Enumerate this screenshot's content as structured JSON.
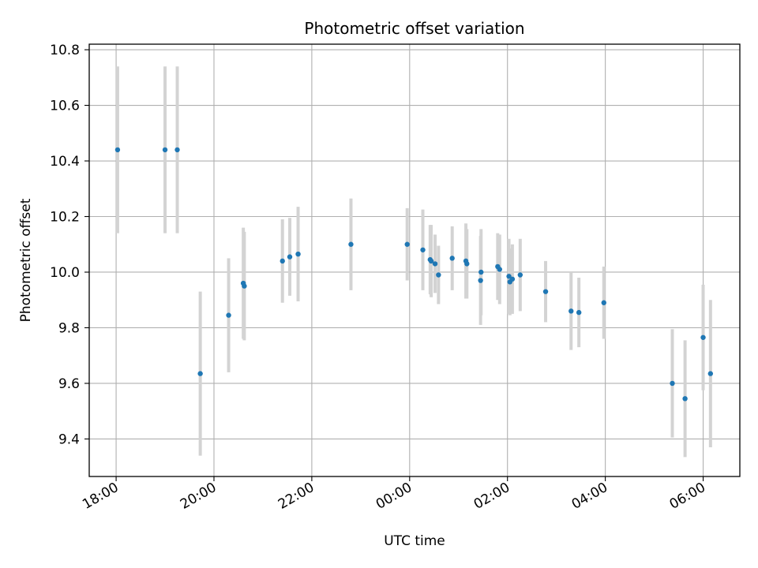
{
  "chart_data": {
    "type": "scatter",
    "title": "Photometric offset variation",
    "xlabel": "UTC time",
    "ylabel": "Photometric offset",
    "x_unit": "hours since 00:00 UTC (negative = previous evening)",
    "xlim": [
      -6.55,
      6.75
    ],
    "ylim": [
      9.265,
      10.82
    ],
    "x_ticks": [
      -6,
      -4,
      -2,
      0,
      2,
      4,
      6
    ],
    "x_tick_labels": [
      "18:00",
      "20:00",
      "22:00",
      "00:00",
      "02:00",
      "04:00",
      "06:00"
    ],
    "y_ticks": [
      9.4,
      9.6,
      9.8,
      10.0,
      10.2,
      10.4,
      10.6,
      10.8
    ],
    "y_tick_labels": [
      "9.4",
      "9.6",
      "9.8",
      "10.0",
      "10.2",
      "10.4",
      "10.6",
      "10.8"
    ],
    "grid": true,
    "colors": {
      "point": "#1f77b4",
      "errorbar": "#d3d3d3",
      "grid": "#b0b0b0"
    },
    "series": [
      {
        "x": [
          -5.97,
          -5.0,
          -4.75,
          -4.28,
          -3.7,
          -3.4,
          -3.38,
          -2.6,
          -2.45,
          -2.28,
          -1.2,
          -0.05,
          0.27,
          0.42,
          0.44,
          0.52,
          0.59,
          0.87,
          1.15,
          1.17,
          1.46,
          1.45,
          1.8,
          1.84,
          2.03,
          2.05,
          2.1,
          2.26,
          2.78,
          3.3,
          3.46,
          3.97,
          5.37,
          5.63,
          6.0,
          6.15
        ],
        "y": [
          10.44,
          10.44,
          10.44,
          9.635,
          9.845,
          9.96,
          9.95,
          10.04,
          10.055,
          10.065,
          10.1,
          10.1,
          10.08,
          10.045,
          10.04,
          10.03,
          9.99,
          10.05,
          10.04,
          10.03,
          10.0,
          9.97,
          10.02,
          10.01,
          9.985,
          9.965,
          9.975,
          9.99,
          9.93,
          9.86,
          9.855,
          9.89,
          9.6,
          9.545,
          9.765,
          9.635
        ],
        "yerr": [
          0.3,
          0.3,
          0.3,
          0.295,
          0.205,
          0.2,
          0.195,
          0.15,
          0.14,
          0.17,
          0.165,
          0.13,
          0.145,
          0.125,
          0.13,
          0.105,
          0.105,
          0.115,
          0.135,
          0.125,
          0.155,
          0.16,
          0.12,
          0.125,
          0.135,
          0.12,
          0.125,
          0.13,
          0.11,
          0.14,
          0.125,
          0.13,
          0.195,
          0.21,
          0.19,
          0.265
        ]
      }
    ]
  }
}
